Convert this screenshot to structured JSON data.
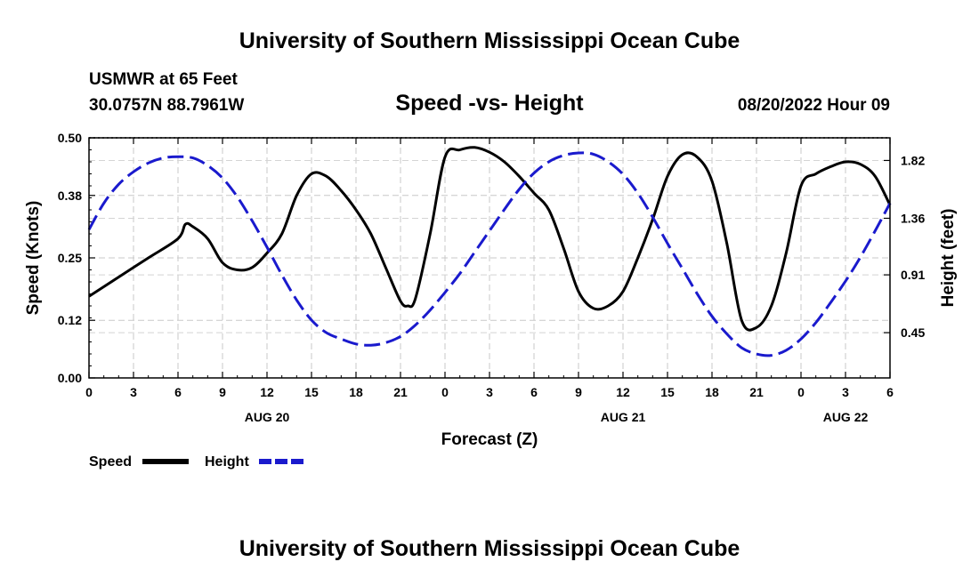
{
  "page": {
    "title": "University of Southern Mississippi Ocean Cube",
    "footer_title": "University of Southern Mississippi Ocean Cube",
    "station": "USMWR at 65 Feet",
    "coords": "30.0757N  88.7961W",
    "timestamp": "08/20/2022 Hour 09"
  },
  "chart_data": {
    "type": "line",
    "title": "Speed -vs- Height",
    "xlabel": "Forecast (Z)",
    "ylabel": "Speed (Knots)",
    "y2label": "Height (feet)",
    "x_range": [
      0,
      54
    ],
    "ylim": [
      0,
      0.5
    ],
    "y2lim": [
      0.09,
      2.0
    ],
    "x_ticks": [
      0,
      3,
      6,
      9,
      12,
      15,
      18,
      21,
      24,
      27,
      30,
      33,
      36,
      39,
      42,
      45,
      48,
      51,
      54
    ],
    "x_tick_labels": [
      "0",
      "3",
      "6",
      "9",
      "12",
      "15",
      "18",
      "21",
      "0",
      "3",
      "6",
      "9",
      "12",
      "15",
      "18",
      "21",
      "0",
      "3",
      "6"
    ],
    "day_labels": [
      {
        "x": 12,
        "label": "AUG 20"
      },
      {
        "x": 36,
        "label": "AUG 21"
      },
      {
        "x": 51,
        "label": "AUG 22"
      }
    ],
    "y_ticks": [
      0.0,
      0.12,
      0.25,
      0.38,
      0.5
    ],
    "y_tick_labels": [
      "0.00",
      "0.12",
      "0.25",
      "0.38",
      "0.50"
    ],
    "y2_ticks": [
      0.45,
      0.91,
      1.36,
      1.82
    ],
    "y2_tick_labels": [
      "0.45",
      "0.91",
      "1.36",
      "1.82"
    ],
    "grid": true,
    "legend": [
      "Speed",
      "Height"
    ],
    "series": [
      {
        "name": "Speed",
        "axis": "left",
        "color": "#000000",
        "dash": "solid",
        "x": [
          0,
          2,
          4,
          6,
          6.5,
          7,
          8,
          9,
          10,
          11,
          12,
          13,
          14,
          15,
          16,
          17,
          18,
          19,
          20,
          21,
          21.5,
          22,
          23,
          24,
          25,
          26,
          27,
          28,
          29,
          30,
          31,
          32,
          33,
          34,
          35,
          36,
          37,
          38,
          39,
          40,
          41,
          42,
          43,
          44,
          45,
          46,
          47,
          48,
          49,
          50,
          51,
          52,
          53,
          54
        ],
        "values": [
          0.17,
          0.21,
          0.25,
          0.29,
          0.32,
          0.315,
          0.29,
          0.24,
          0.225,
          0.23,
          0.26,
          0.3,
          0.38,
          0.425,
          0.42,
          0.39,
          0.35,
          0.3,
          0.23,
          0.16,
          0.15,
          0.165,
          0.3,
          0.46,
          0.475,
          0.48,
          0.47,
          0.45,
          0.42,
          0.385,
          0.35,
          0.27,
          0.18,
          0.145,
          0.15,
          0.18,
          0.25,
          0.33,
          0.42,
          0.465,
          0.46,
          0.41,
          0.28,
          0.12,
          0.105,
          0.15,
          0.26,
          0.4,
          0.425,
          0.44,
          0.45,
          0.445,
          0.42,
          0.36
        ]
      },
      {
        "name": "Height",
        "axis": "right",
        "color": "#1a1acd",
        "dash": "dashed",
        "x": [
          0,
          1,
          2,
          3,
          4,
          5,
          6,
          7,
          8,
          9,
          10,
          11,
          12,
          13,
          14,
          15,
          16,
          17,
          18,
          19,
          20,
          21,
          22,
          23,
          24,
          25,
          26,
          27,
          28,
          29,
          30,
          31,
          32,
          33,
          34,
          35,
          36,
          37,
          38,
          39,
          40,
          41,
          42,
          43,
          44,
          45,
          46,
          47,
          48,
          49,
          50,
          51,
          52,
          53,
          54
        ],
        "values": [
          1.27,
          1.48,
          1.63,
          1.73,
          1.8,
          1.84,
          1.85,
          1.84,
          1.78,
          1.68,
          1.53,
          1.34,
          1.13,
          0.91,
          0.71,
          0.55,
          0.45,
          0.4,
          0.36,
          0.35,
          0.37,
          0.42,
          0.51,
          0.63,
          0.77,
          0.92,
          1.09,
          1.26,
          1.43,
          1.59,
          1.72,
          1.81,
          1.86,
          1.88,
          1.87,
          1.81,
          1.71,
          1.56,
          1.37,
          1.16,
          0.96,
          0.76,
          0.58,
          0.44,
          0.33,
          0.28,
          0.27,
          0.31,
          0.4,
          0.53,
          0.69,
          0.86,
          1.05,
          1.26,
          1.48
        ]
      }
    ]
  }
}
